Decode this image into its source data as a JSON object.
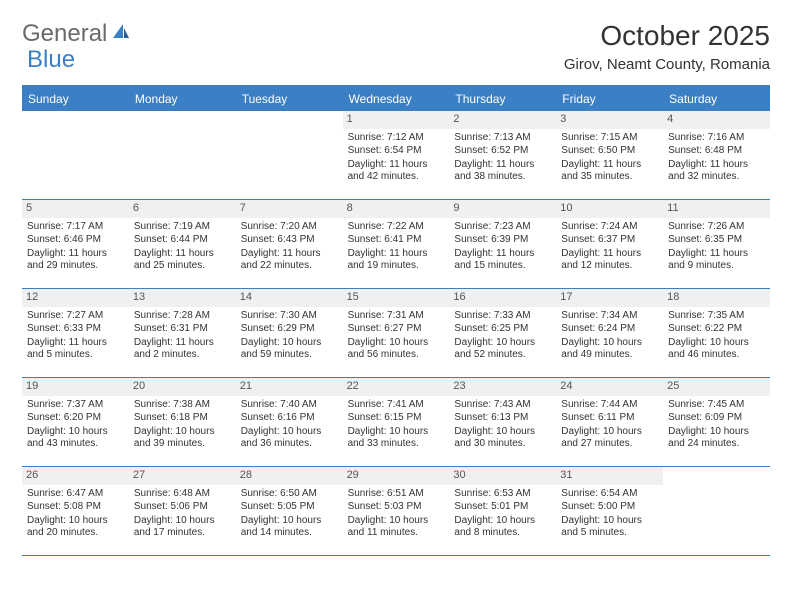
{
  "logo": {
    "text1": "General",
    "text2": "Blue"
  },
  "title": "October 2025",
  "location": "Girov, Neamt County, Romania",
  "colors": {
    "header_bg": "#3b7fc4",
    "header_text": "#ffffff",
    "num_bg": "#eef0f2",
    "border": "#3b7fc4",
    "text": "#333333",
    "logo_gray": "#6a6a6a",
    "logo_blue": "#3b7fc4",
    "background": "#ffffff"
  },
  "day_names": [
    "Sunday",
    "Monday",
    "Tuesday",
    "Wednesday",
    "Thursday",
    "Friday",
    "Saturday"
  ],
  "weeks": [
    [
      {
        "n": "",
        "sr": "",
        "ss": "",
        "dl": ""
      },
      {
        "n": "",
        "sr": "",
        "ss": "",
        "dl": ""
      },
      {
        "n": "",
        "sr": "",
        "ss": "",
        "dl": ""
      },
      {
        "n": "1",
        "sr": "Sunrise: 7:12 AM",
        "ss": "Sunset: 6:54 PM",
        "dl": "Daylight: 11 hours and 42 minutes."
      },
      {
        "n": "2",
        "sr": "Sunrise: 7:13 AM",
        "ss": "Sunset: 6:52 PM",
        "dl": "Daylight: 11 hours and 38 minutes."
      },
      {
        "n": "3",
        "sr": "Sunrise: 7:15 AM",
        "ss": "Sunset: 6:50 PM",
        "dl": "Daylight: 11 hours and 35 minutes."
      },
      {
        "n": "4",
        "sr": "Sunrise: 7:16 AM",
        "ss": "Sunset: 6:48 PM",
        "dl": "Daylight: 11 hours and 32 minutes."
      }
    ],
    [
      {
        "n": "5",
        "sr": "Sunrise: 7:17 AM",
        "ss": "Sunset: 6:46 PM",
        "dl": "Daylight: 11 hours and 29 minutes."
      },
      {
        "n": "6",
        "sr": "Sunrise: 7:19 AM",
        "ss": "Sunset: 6:44 PM",
        "dl": "Daylight: 11 hours and 25 minutes."
      },
      {
        "n": "7",
        "sr": "Sunrise: 7:20 AM",
        "ss": "Sunset: 6:43 PM",
        "dl": "Daylight: 11 hours and 22 minutes."
      },
      {
        "n": "8",
        "sr": "Sunrise: 7:22 AM",
        "ss": "Sunset: 6:41 PM",
        "dl": "Daylight: 11 hours and 19 minutes."
      },
      {
        "n": "9",
        "sr": "Sunrise: 7:23 AM",
        "ss": "Sunset: 6:39 PM",
        "dl": "Daylight: 11 hours and 15 minutes."
      },
      {
        "n": "10",
        "sr": "Sunrise: 7:24 AM",
        "ss": "Sunset: 6:37 PM",
        "dl": "Daylight: 11 hours and 12 minutes."
      },
      {
        "n": "11",
        "sr": "Sunrise: 7:26 AM",
        "ss": "Sunset: 6:35 PM",
        "dl": "Daylight: 11 hours and 9 minutes."
      }
    ],
    [
      {
        "n": "12",
        "sr": "Sunrise: 7:27 AM",
        "ss": "Sunset: 6:33 PM",
        "dl": "Daylight: 11 hours and 5 minutes."
      },
      {
        "n": "13",
        "sr": "Sunrise: 7:28 AM",
        "ss": "Sunset: 6:31 PM",
        "dl": "Daylight: 11 hours and 2 minutes."
      },
      {
        "n": "14",
        "sr": "Sunrise: 7:30 AM",
        "ss": "Sunset: 6:29 PM",
        "dl": "Daylight: 10 hours and 59 minutes."
      },
      {
        "n": "15",
        "sr": "Sunrise: 7:31 AM",
        "ss": "Sunset: 6:27 PM",
        "dl": "Daylight: 10 hours and 56 minutes."
      },
      {
        "n": "16",
        "sr": "Sunrise: 7:33 AM",
        "ss": "Sunset: 6:25 PM",
        "dl": "Daylight: 10 hours and 52 minutes."
      },
      {
        "n": "17",
        "sr": "Sunrise: 7:34 AM",
        "ss": "Sunset: 6:24 PM",
        "dl": "Daylight: 10 hours and 49 minutes."
      },
      {
        "n": "18",
        "sr": "Sunrise: 7:35 AM",
        "ss": "Sunset: 6:22 PM",
        "dl": "Daylight: 10 hours and 46 minutes."
      }
    ],
    [
      {
        "n": "19",
        "sr": "Sunrise: 7:37 AM",
        "ss": "Sunset: 6:20 PM",
        "dl": "Daylight: 10 hours and 43 minutes."
      },
      {
        "n": "20",
        "sr": "Sunrise: 7:38 AM",
        "ss": "Sunset: 6:18 PM",
        "dl": "Daylight: 10 hours and 39 minutes."
      },
      {
        "n": "21",
        "sr": "Sunrise: 7:40 AM",
        "ss": "Sunset: 6:16 PM",
        "dl": "Daylight: 10 hours and 36 minutes."
      },
      {
        "n": "22",
        "sr": "Sunrise: 7:41 AM",
        "ss": "Sunset: 6:15 PM",
        "dl": "Daylight: 10 hours and 33 minutes."
      },
      {
        "n": "23",
        "sr": "Sunrise: 7:43 AM",
        "ss": "Sunset: 6:13 PM",
        "dl": "Daylight: 10 hours and 30 minutes."
      },
      {
        "n": "24",
        "sr": "Sunrise: 7:44 AM",
        "ss": "Sunset: 6:11 PM",
        "dl": "Daylight: 10 hours and 27 minutes."
      },
      {
        "n": "25",
        "sr": "Sunrise: 7:45 AM",
        "ss": "Sunset: 6:09 PM",
        "dl": "Daylight: 10 hours and 24 minutes."
      }
    ],
    [
      {
        "n": "26",
        "sr": "Sunrise: 6:47 AM",
        "ss": "Sunset: 5:08 PM",
        "dl": "Daylight: 10 hours and 20 minutes."
      },
      {
        "n": "27",
        "sr": "Sunrise: 6:48 AM",
        "ss": "Sunset: 5:06 PM",
        "dl": "Daylight: 10 hours and 17 minutes."
      },
      {
        "n": "28",
        "sr": "Sunrise: 6:50 AM",
        "ss": "Sunset: 5:05 PM",
        "dl": "Daylight: 10 hours and 14 minutes."
      },
      {
        "n": "29",
        "sr": "Sunrise: 6:51 AM",
        "ss": "Sunset: 5:03 PM",
        "dl": "Daylight: 10 hours and 11 minutes."
      },
      {
        "n": "30",
        "sr": "Sunrise: 6:53 AM",
        "ss": "Sunset: 5:01 PM",
        "dl": "Daylight: 10 hours and 8 minutes."
      },
      {
        "n": "31",
        "sr": "Sunrise: 6:54 AM",
        "ss": "Sunset: 5:00 PM",
        "dl": "Daylight: 10 hours and 5 minutes."
      },
      {
        "n": "",
        "sr": "",
        "ss": "",
        "dl": ""
      }
    ]
  ]
}
